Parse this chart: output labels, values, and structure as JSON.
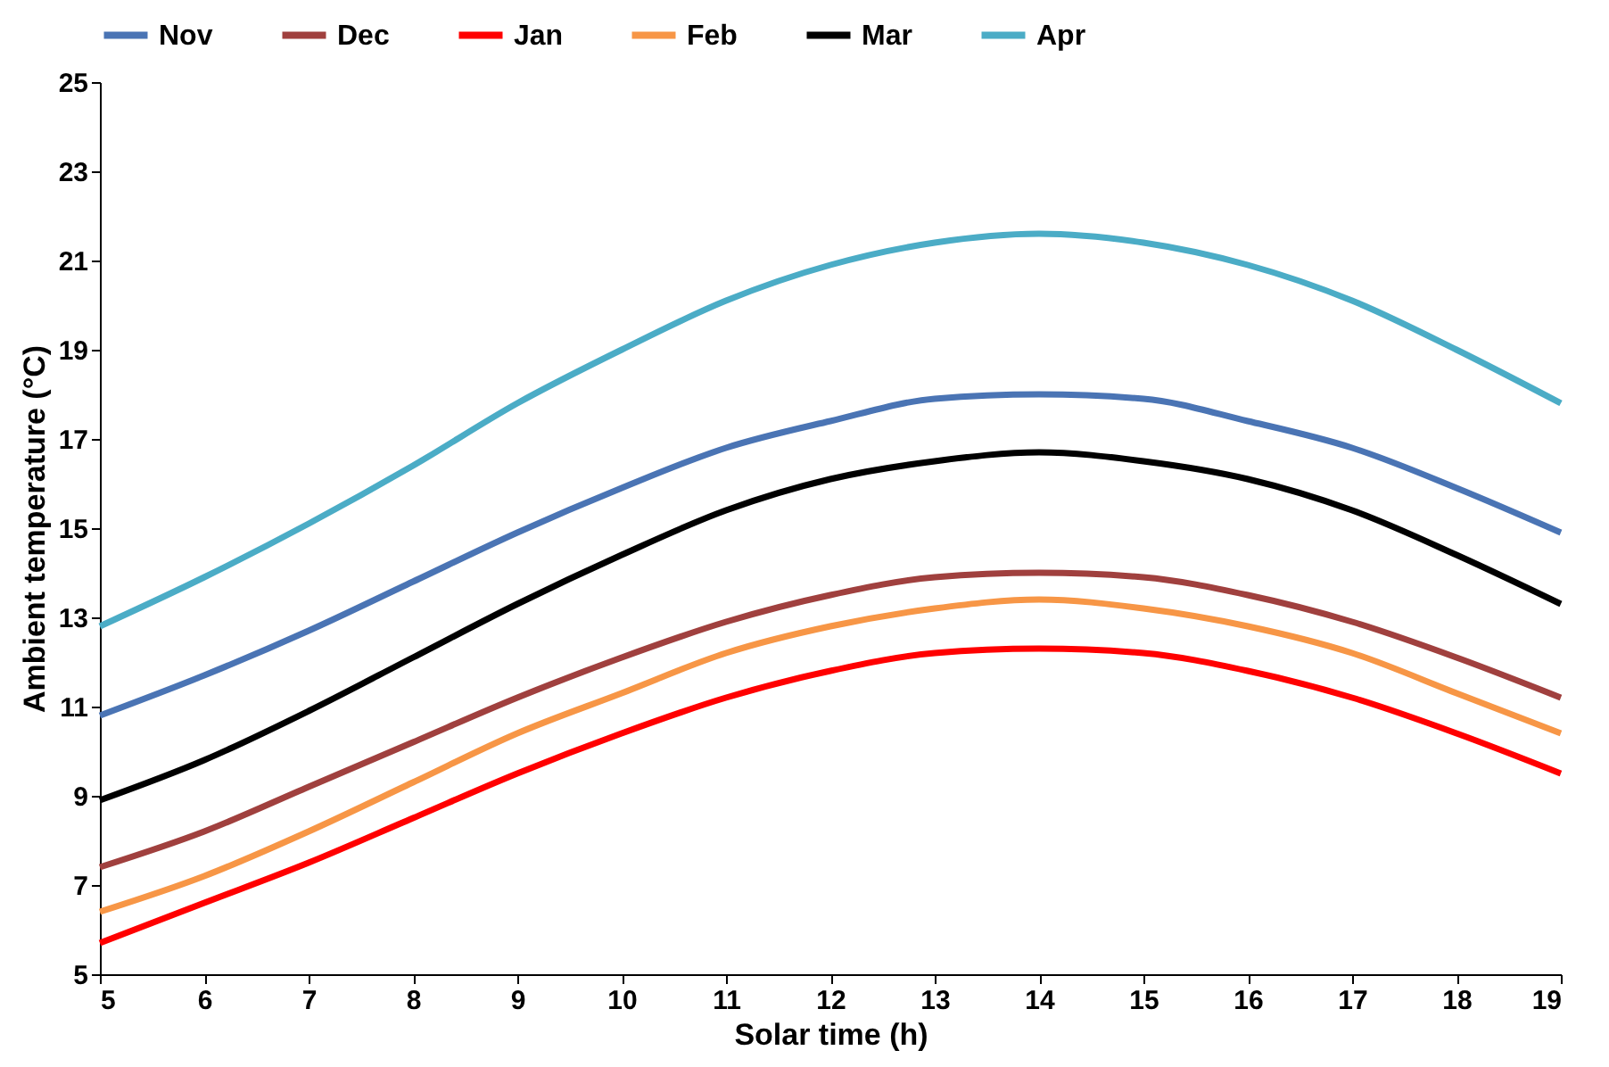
{
  "chart_data": {
    "type": "line",
    "xlabel": "Solar time (h)",
    "ylabel": "Ambient temperature (°C)",
    "x": [
      5,
      6,
      7,
      8,
      9,
      10,
      11,
      12,
      13,
      14,
      15,
      16,
      17,
      18,
      19
    ],
    "xlim": [
      5,
      19
    ],
    "xticks": [
      5,
      6,
      7,
      8,
      9,
      10,
      11,
      12,
      13,
      14,
      15,
      16,
      17,
      18,
      19
    ],
    "ylim": [
      5,
      25
    ],
    "yticks": [
      5,
      7,
      9,
      11,
      13,
      15,
      17,
      19,
      21,
      23,
      25
    ],
    "grid": false,
    "legend": "top",
    "marker": "none",
    "line_style": "solid",
    "series": [
      {
        "name": "Nov",
        "color": "#4a74b4",
        "values": [
          10.8,
          11.7,
          12.7,
          13.8,
          14.9,
          15.9,
          16.8,
          17.4,
          17.9,
          18.0,
          17.9,
          17.4,
          16.8,
          15.9,
          14.9
        ]
      },
      {
        "name": "Dec",
        "color": "#a0403e",
        "values": [
          7.4,
          8.2,
          9.2,
          10.2,
          11.2,
          12.1,
          12.9,
          13.5,
          13.9,
          14.0,
          13.9,
          13.5,
          12.9,
          12.1,
          11.2
        ]
      },
      {
        "name": "Jan",
        "color": "#ff0000",
        "values": [
          5.7,
          6.6,
          7.5,
          8.5,
          9.5,
          10.4,
          11.2,
          11.8,
          12.2,
          12.3,
          12.2,
          11.8,
          11.2,
          10.4,
          9.5
        ]
      },
      {
        "name": "Feb",
        "color": "#f79646",
        "values": [
          6.4,
          7.2,
          8.2,
          9.3,
          10.4,
          11.3,
          12.2,
          12.8,
          13.2,
          13.4,
          13.2,
          12.8,
          12.2,
          11.3,
          10.4
        ]
      },
      {
        "name": "Mar",
        "color": "#000000",
        "values": [
          8.9,
          9.8,
          10.9,
          12.1,
          13.3,
          14.4,
          15.4,
          16.1,
          16.5,
          16.7,
          16.5,
          16.1,
          15.4,
          14.4,
          13.3
        ]
      },
      {
        "name": "Apr",
        "color": "#4bacc6",
        "values": [
          12.8,
          13.9,
          15.1,
          16.4,
          17.8,
          19.0,
          20.1,
          20.9,
          21.4,
          21.6,
          21.4,
          20.9,
          20.1,
          19.0,
          17.8
        ]
      }
    ]
  }
}
